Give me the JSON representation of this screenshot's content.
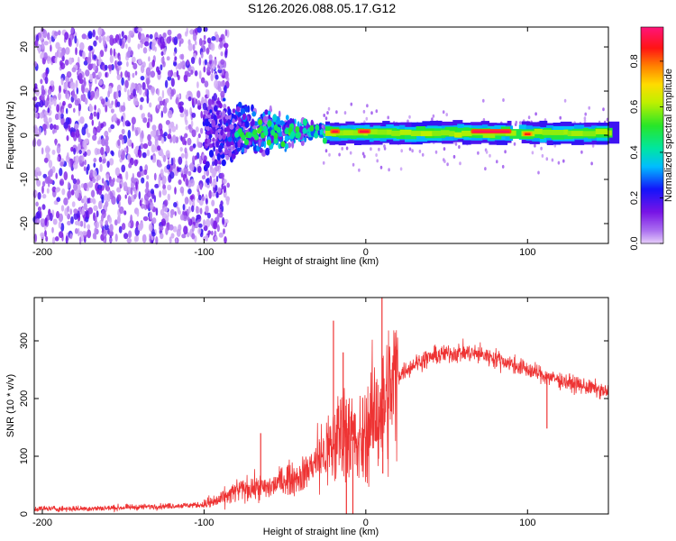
{
  "title": "S126.2026.088.05.17.G12",
  "chart_data": [
    {
      "type": "heatmap",
      "xlabel": "Height of straight line (km)",
      "ylabel": "Frequency (Hz)",
      "xlim": [
        -205,
        150
      ],
      "ylim": [
        -24.5,
        24.5
      ],
      "xticks": [
        -200,
        -100,
        0,
        100
      ],
      "xtick_labels": [
        "-200",
        "-100",
        "0",
        "100"
      ],
      "yticks": [
        -20,
        -10,
        0,
        10,
        20
      ],
      "ytick_labels": [
        "-20",
        "-10",
        "0",
        "10",
        "20"
      ],
      "colorbar": {
        "label": "Normalized spectral amplitude",
        "range": [
          0.0,
          0.95
        ],
        "ticks": [
          0.0,
          0.2,
          0.4,
          0.6,
          0.8
        ],
        "tick_labels": [
          "0.0",
          "0.2",
          "0.4",
          "0.6",
          "0.8"
        ]
      },
      "features": {
        "noise_region_km": [
          -205,
          -100
        ],
        "transition_region_km": [
          -100,
          -25
        ],
        "signal_band_km": [
          -25,
          150
        ],
        "signal_freq_center_hz": 0.5,
        "signal_freq_halfwidth_hz": 1.5,
        "strong_segments": [
          {
            "x": [
              -22,
              -16
            ],
            "f": 0.8,
            "amp": 0.9
          },
          {
            "x": [
              -5,
              3
            ],
            "f": 0.8,
            "amp": 0.9
          },
          {
            "x": [
              65,
              90
            ],
            "f": 0.8,
            "amp": 0.92
          },
          {
            "x": [
              97,
              103
            ],
            "f": 0.2,
            "amp": 0.85
          }
        ],
        "gap_km": 92
      }
    },
    {
      "type": "line",
      "xlabel": "Height of straight line (km)",
      "ylabel": "SNR (10 * v/v)",
      "xlim": [
        -205,
        150
      ],
      "ylim": [
        0,
        375
      ],
      "xticks": [
        -200,
        -100,
        0,
        100
      ],
      "xtick_labels": [
        "-200",
        "-100",
        "0",
        "100"
      ],
      "yticks": [
        0,
        100,
        200,
        300
      ],
      "ytick_labels": [
        "0",
        "100",
        "200",
        "300"
      ],
      "series": [
        {
          "name": "SNR",
          "color": "#ee3333",
          "x": [
            -205,
            -180,
            -160,
            -140,
            -120,
            -100,
            -90,
            -80,
            -70,
            -60,
            -50,
            -40,
            -30,
            -20,
            -15,
            -10,
            -5,
            0,
            5,
            10,
            15,
            20,
            30,
            40,
            50,
            60,
            70,
            80,
            90,
            100,
            110,
            120,
            130,
            140,
            150
          ],
          "y": [
            9,
            9,
            10,
            12,
            14,
            16,
            24,
            40,
            45,
            45,
            60,
            65,
            95,
            115,
            150,
            150,
            110,
            140,
            170,
            180,
            210,
            240,
            260,
            272,
            278,
            280,
            277,
            270,
            260,
            250,
            240,
            232,
            224,
            218,
            210
          ],
          "spikes": [
            {
              "x": -65,
              "y": 140
            },
            {
              "x": -20,
              "y": 335
            },
            {
              "x": -14,
              "y": 280
            },
            {
              "x": 10,
              "y": 380
            },
            {
              "x": 10.5,
              "y": 70
            },
            {
              "x": -12,
              "y": 0
            },
            {
              "x": -8,
              "y": 0
            },
            {
              "x": 112,
              "y": 148
            }
          ]
        }
      ]
    }
  ]
}
